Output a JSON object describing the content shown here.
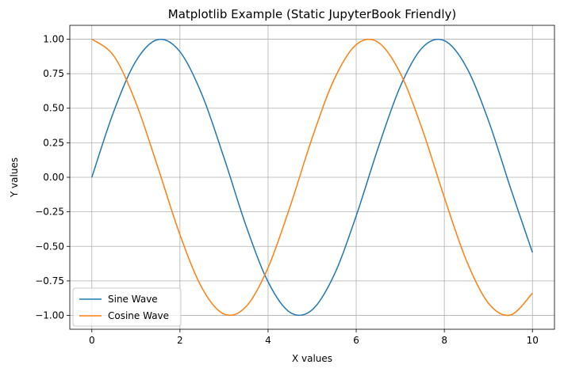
{
  "chart_data": {
    "type": "line",
    "title": "Matplotlib Example (Static JupyterBook Friendly)",
    "xlabel": "X values",
    "ylabel": "Y values",
    "xlim": [
      -0.5,
      10.5
    ],
    "ylim": [
      -1.1,
      1.1
    ],
    "xticks": [
      0,
      2,
      4,
      6,
      8,
      10
    ],
    "xtick_labels": [
      "0",
      "2",
      "4",
      "6",
      "8",
      "10"
    ],
    "yticks": [
      -1.0,
      -0.75,
      -0.5,
      -0.25,
      0.0,
      0.25,
      0.5,
      0.75,
      1.0
    ],
    "ytick_labels": [
      "−1.00",
      "−0.75",
      "−0.50",
      "−0.25",
      "0.00",
      "0.25",
      "0.50",
      "0.75",
      "1.00"
    ],
    "grid": true,
    "legend_position": "lower-left",
    "x": [
      0,
      0.5,
      1,
      1.5,
      2,
      2.5,
      3,
      3.5,
      4,
      4.5,
      5,
      5.5,
      6,
      6.5,
      7,
      7.5,
      8,
      8.5,
      9,
      9.5,
      10
    ],
    "series": [
      {
        "name": "Sine Wave",
        "color": "#1f77b4",
        "values": [
          0.0,
          0.479,
          0.841,
          0.997,
          0.909,
          0.598,
          0.141,
          -0.351,
          -0.757,
          -0.978,
          -0.959,
          -0.706,
          -0.279,
          0.215,
          0.657,
          0.938,
          0.989,
          0.798,
          0.412,
          -0.075,
          -0.544
        ]
      },
      {
        "name": "Cosine Wave",
        "color": "#ff7f0e",
        "values": [
          1.0,
          0.878,
          0.54,
          0.071,
          -0.416,
          -0.801,
          -0.99,
          -0.936,
          -0.654,
          -0.211,
          0.284,
          0.709,
          0.96,
          0.977,
          0.754,
          0.347,
          -0.146,
          -0.602,
          -0.911,
          -0.997,
          -0.839
        ]
      }
    ]
  }
}
